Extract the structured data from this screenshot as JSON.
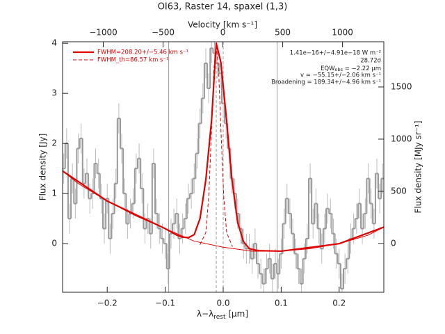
{
  "chart_data": {
    "type": "spectrum",
    "title": "OI63, Raster 14, spaxel (1,3)",
    "xlabel": {
      "main": "λ−λ",
      "sub": "rest",
      "tail": " [μm]"
    },
    "ylabel": "Flux density [Jy]",
    "x2label": "Velocity [km s⁻¹]",
    "y2label": "Flux density [MJy sr⁻¹]",
    "xlim": [
      -0.277,
      0.277
    ],
    "ylim": [
      -0.97,
      4.03
    ],
    "x2lim": [
      -1340,
      1345
    ],
    "y2lim": [
      -467,
      1933
    ],
    "xticks": [
      {
        "value": -0.2,
        "label": "−0.2"
      },
      {
        "value": -0.1,
        "label": "−0.1"
      },
      {
        "value": 0.0,
        "label": "0.0"
      },
      {
        "value": 0.1,
        "label": "0.1"
      },
      {
        "value": 0.2,
        "label": "0.2"
      }
    ],
    "yticks": [
      0,
      1,
      2,
      3,
      4
    ],
    "x2ticks": [
      {
        "value": -1000,
        "label": "−1000"
      },
      {
        "value": -500,
        "label": "−500"
      },
      0,
      500,
      1000
    ],
    "y2ticks": [
      0,
      500,
      1000,
      1500
    ],
    "vlines": [
      -0.094,
      0.093
    ],
    "vlines_dashed": [
      -0.012,
      0.0
    ],
    "spectrum": {
      "color": "#999999",
      "error_color": "#bbbbbb",
      "bin": 0.005,
      "error": 0.3,
      "x": [
        -0.275,
        -0.27,
        -0.265,
        -0.26,
        -0.255,
        -0.25,
        -0.245,
        -0.24,
        -0.235,
        -0.23,
        -0.225,
        -0.22,
        -0.215,
        -0.21,
        -0.205,
        -0.2,
        -0.195,
        -0.19,
        -0.185,
        -0.18,
        -0.175,
        -0.17,
        -0.165,
        -0.16,
        -0.155,
        -0.15,
        -0.145,
        -0.14,
        -0.135,
        -0.13,
        -0.125,
        -0.12,
        -0.115,
        -0.11,
        -0.105,
        -0.1,
        -0.095,
        -0.09,
        -0.085,
        -0.08,
        -0.075,
        -0.07,
        -0.065,
        -0.06,
        -0.055,
        -0.05,
        -0.045,
        -0.04,
        -0.035,
        -0.03,
        -0.025,
        -0.02,
        -0.015,
        -0.01,
        -0.005,
        0.0,
        0.005,
        0.01,
        0.015,
        0.02,
        0.025,
        0.03,
        0.035,
        0.04,
        0.045,
        0.05,
        0.055,
        0.06,
        0.065,
        0.07,
        0.075,
        0.08,
        0.085,
        0.09,
        0.095,
        0.1,
        0.105,
        0.11,
        0.115,
        0.12,
        0.125,
        0.13,
        0.135,
        0.14,
        0.145,
        0.15,
        0.155,
        0.16,
        0.165,
        0.17,
        0.175,
        0.18,
        0.185,
        0.19,
        0.195,
        0.2,
        0.205,
        0.21,
        0.215,
        0.22,
        0.225,
        0.23,
        0.235,
        0.24,
        0.245,
        0.25,
        0.255,
        0.26,
        0.265,
        0.27,
        0.275
      ],
      "values": [
        1.5,
        2.0,
        0.5,
        1.3,
        0.8,
        1.9,
        2.1,
        1.2,
        1.4,
        0.9,
        1.0,
        1.6,
        1.4,
        0.9,
        0.3,
        0.9,
        0.1,
        0.6,
        1.2,
        2.5,
        1.9,
        1.0,
        0.4,
        0.6,
        0.8,
        1.5,
        1.7,
        1.1,
        0.3,
        0.5,
        0.2,
        1.6,
        0.6,
        0.3,
        0.1,
        0.0,
        -0.5,
        0.2,
        0.4,
        0.6,
        0.1,
        0.3,
        0.5,
        0.9,
        1.0,
        1.3,
        1.8,
        2.4,
        2.9,
        3.6,
        3.1,
        3.9,
        3.8,
        3.6,
        3.4,
        2.8,
        2.4,
        1.9,
        1.3,
        1.0,
        0.6,
        0.3,
        0.0,
        -0.1,
        -0.1,
        -0.3,
        0.0,
        -0.4,
        -0.6,
        -0.8,
        -0.5,
        -0.3,
        -0.7,
        -0.4,
        -0.6,
        -0.2,
        0.4,
        0.9,
        0.6,
        0.2,
        -0.2,
        -0.5,
        -0.8,
        -0.3,
        0.1,
        1.3,
        0.4,
        0.8,
        0.3,
        -0.1,
        0.3,
        0.7,
        0.6,
        0.2,
        -0.2,
        -0.4,
        -0.9,
        -0.5,
        -0.3,
        0.1,
        0.3,
        0.5,
        0.8,
        0.3,
        0.6,
        1.3,
        0.8,
        0.4,
        1.4,
        0.9,
        1.3
      ]
    },
    "series": [
      {
        "name": "FWHM=208.20+/−5.46 km s⁻¹",
        "color": "#e00000",
        "width": 2.2,
        "dash": false,
        "x": [
          -0.277,
          -0.2,
          -0.1,
          -0.08,
          -0.07,
          -0.06,
          -0.05,
          -0.04,
          -0.03,
          -0.02,
          -0.012,
          -0.004,
          0.005,
          0.015,
          0.025,
          0.035,
          0.045,
          0.06,
          0.1,
          0.2,
          0.277
        ],
        "values": [
          1.45,
          0.85,
          0.3,
          0.17,
          0.13,
          0.12,
          0.18,
          0.5,
          1.27,
          2.47,
          4.0,
          3.62,
          2.56,
          1.28,
          0.42,
          0.04,
          -0.1,
          -0.14,
          -0.15,
          0.0,
          0.33
        ]
      },
      {
        "name": "FWHM_th=86.57 km s⁻¹",
        "color": "#e00000",
        "width": 1,
        "dash": true,
        "x": [
          -0.04,
          -0.03,
          -0.025,
          -0.02,
          -0.016,
          -0.012,
          -0.008,
          -0.004,
          0.001,
          0.006,
          0.016
        ],
        "values": [
          -0.02,
          0.22,
          0.92,
          2.3,
          3.5,
          3.95,
          3.5,
          2.3,
          0.92,
          0.22,
          -0.06
        ]
      },
      {
        "color": "#e00000",
        "width": 1,
        "dash": false,
        "x": [
          -0.277,
          -0.25,
          -0.2,
          -0.15,
          -0.1,
          -0.05,
          0,
          0.05,
          0.1,
          0.15,
          0.2,
          0.25,
          0.277
        ],
        "values": [
          1.45,
          1.2,
          0.85,
          0.55,
          0.3,
          0.05,
          -0.07,
          -0.15,
          -0.15,
          -0.1,
          0.0,
          0.17,
          0.33
        ]
      }
    ],
    "annotations": [
      "1.41e−16+/−4.91e−18 W m⁻²",
      "28.72σ",
      "v = −55.15+/−2.06 km s⁻¹",
      "Broadening = 189.34+/−4.96 km s⁻¹"
    ],
    "eqw": {
      "main": "EQW",
      "sub": "obs",
      "tail": " = −2.22 μm"
    }
  }
}
